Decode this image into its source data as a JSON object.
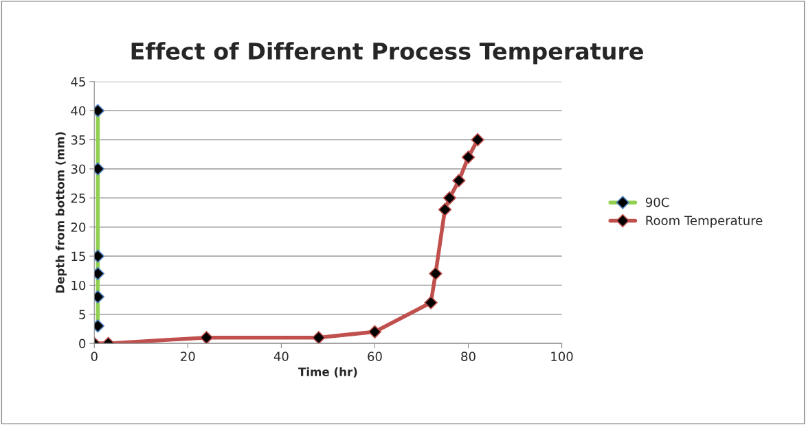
{
  "chart_data": {
    "type": "line",
    "title": "Effect of Different Process Temperature",
    "xlabel": "Time (hr)",
    "ylabel": "Depth from bottom (mm)",
    "series": [
      {
        "name": "90C",
        "color": "#92d050",
        "x": [
          0.75,
          0.75,
          0.75,
          0.75,
          0.75,
          0.75
        ],
        "values": [
          3,
          8,
          12,
          15,
          30,
          40
        ]
      },
      {
        "name": "Room Temperature",
        "color": "#c0504d",
        "x": [
          0,
          3,
          24,
          48,
          60,
          72,
          73,
          75,
          76,
          78,
          80,
          82
        ],
        "values": [
          0,
          0,
          1,
          1,
          2,
          7,
          12,
          23,
          25,
          28,
          32,
          35
        ]
      }
    ],
    "xlim": [
      0,
      100
    ],
    "xticks": [
      0,
      20,
      40,
      60,
      80,
      100
    ],
    "ylim": [
      0,
      45
    ],
    "yticks": [
      0,
      5,
      10,
      15,
      20,
      25,
      30,
      35,
      40,
      45
    ],
    "grid": "y",
    "legend": "right",
    "marker": "diamond",
    "line_style": "solid"
  }
}
